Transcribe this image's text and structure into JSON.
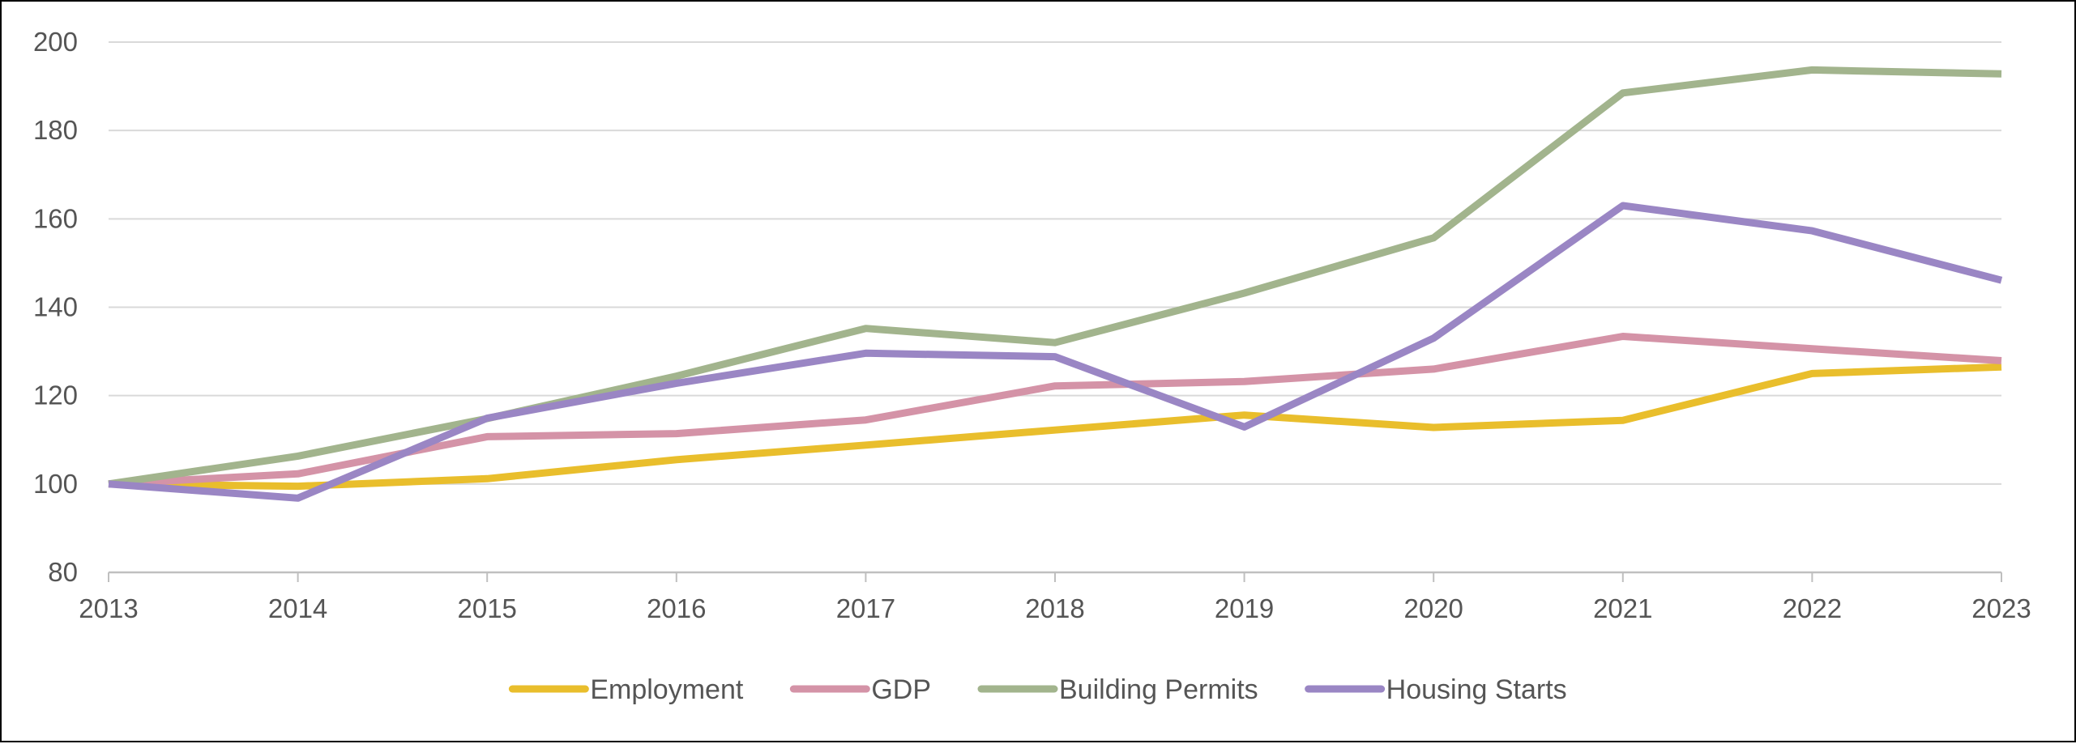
{
  "chart_data": {
    "type": "line",
    "title": "",
    "xlabel": "",
    "ylabel": "",
    "x": [
      "2013",
      "2014",
      "2015",
      "2016",
      "2017",
      "2018",
      "2019",
      "2020",
      "2021",
      "2022",
      "2023"
    ],
    "ylim": [
      80,
      200
    ],
    "yticks": [
      80,
      100,
      120,
      140,
      160,
      180,
      200
    ],
    "grid": true,
    "legend_position": "bottom",
    "series": [
      {
        "name": "Employment",
        "color": "#E9BE2C",
        "values": [
          100,
          99.5,
          101.2,
          105.5,
          108.8,
          112.2,
          115.6,
          112.8,
          114.4,
          125.0,
          126.5
        ]
      },
      {
        "name": "GDP",
        "color": "#D493A7",
        "values": [
          100,
          102.3,
          110.7,
          111.4,
          114.5,
          122.2,
          123.2,
          126.0,
          133.4,
          130.6,
          127.9
        ]
      },
      {
        "name": "Building Permits",
        "color": "#A2B48D",
        "values": [
          100,
          106.3,
          114.8,
          124.4,
          135.2,
          132.0,
          143.2,
          155.7,
          188.5,
          193.7,
          192.8
        ]
      },
      {
        "name": "Housing Starts",
        "color": "#9A86C4",
        "values": [
          100,
          96.8,
          114.9,
          122.8,
          129.6,
          128.8,
          112.9,
          133.0,
          163.0,
          157.3,
          146.1
        ]
      }
    ]
  }
}
